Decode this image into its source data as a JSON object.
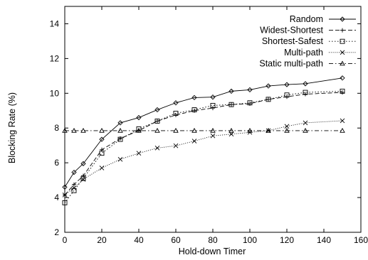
{
  "chart_data": {
    "type": "line",
    "title": "",
    "xlabel": "Hold-down Timer",
    "ylabel": "Blocking Rate (%)",
    "xlim": [
      0,
      160
    ],
    "ylim": [
      2,
      15
    ],
    "xticks": [
      0,
      20,
      40,
      60,
      80,
      100,
      120,
      140,
      160
    ],
    "yticks": [
      2,
      4,
      6,
      8,
      10,
      12,
      14
    ],
    "grid": false,
    "legend_position": "top-right",
    "series": [
      {
        "name": "Random",
        "marker": "diamond",
        "dash": "solid",
        "x": [
          0,
          5,
          10,
          20,
          30,
          40,
          50,
          60,
          70,
          80,
          90,
          100,
          110,
          120,
          130,
          150
        ],
        "y": [
          4.6,
          5.45,
          5.95,
          7.35,
          8.3,
          8.6,
          9.05,
          9.45,
          9.75,
          9.78,
          10.12,
          10.2,
          10.42,
          10.5,
          10.55,
          10.88
        ]
      },
      {
        "name": "Widest-Shortest",
        "marker": "plus",
        "dash": "long-dash",
        "x": [
          0,
          5,
          10,
          20,
          30,
          40,
          50,
          60,
          70,
          80,
          90,
          100,
          110,
          120,
          130,
          150
        ],
        "y": [
          4.15,
          4.75,
          5.25,
          6.75,
          7.4,
          7.85,
          8.4,
          8.75,
          9.0,
          9.15,
          9.35,
          9.4,
          9.65,
          9.8,
          9.95,
          10.05
        ]
      },
      {
        "name": "Shortest-Safest",
        "marker": "square",
        "dash": "dotted",
        "x": [
          0,
          5,
          10,
          20,
          30,
          40,
          50,
          60,
          70,
          80,
          90,
          100,
          110,
          120,
          130,
          150
        ],
        "y": [
          3.7,
          4.4,
          5.1,
          6.55,
          7.35,
          7.95,
          8.4,
          8.85,
          9.05,
          9.3,
          9.35,
          9.45,
          9.65,
          9.9,
          10.05,
          10.12
        ]
      },
      {
        "name": "Multi-path",
        "marker": "cross",
        "dash": "fine-dotted",
        "x": [
          0,
          5,
          10,
          20,
          30,
          40,
          50,
          60,
          70,
          80,
          90,
          100,
          110,
          120,
          130,
          150
        ],
        "y": [
          4.15,
          4.55,
          5.05,
          5.7,
          6.2,
          6.55,
          6.85,
          6.98,
          7.25,
          7.55,
          7.65,
          7.75,
          7.85,
          8.1,
          8.3,
          8.42
        ]
      },
      {
        "name": "Static multi-path",
        "marker": "triangle",
        "dash": "dash-dot",
        "x": [
          0,
          5,
          10,
          20,
          30,
          40,
          50,
          60,
          70,
          80,
          90,
          100,
          110,
          120,
          130,
          150
        ],
        "y": [
          7.85,
          7.85,
          7.85,
          7.85,
          7.85,
          7.85,
          7.85,
          7.85,
          7.85,
          7.85,
          7.85,
          7.85,
          7.85,
          7.85,
          7.85,
          7.85
        ]
      }
    ]
  }
}
